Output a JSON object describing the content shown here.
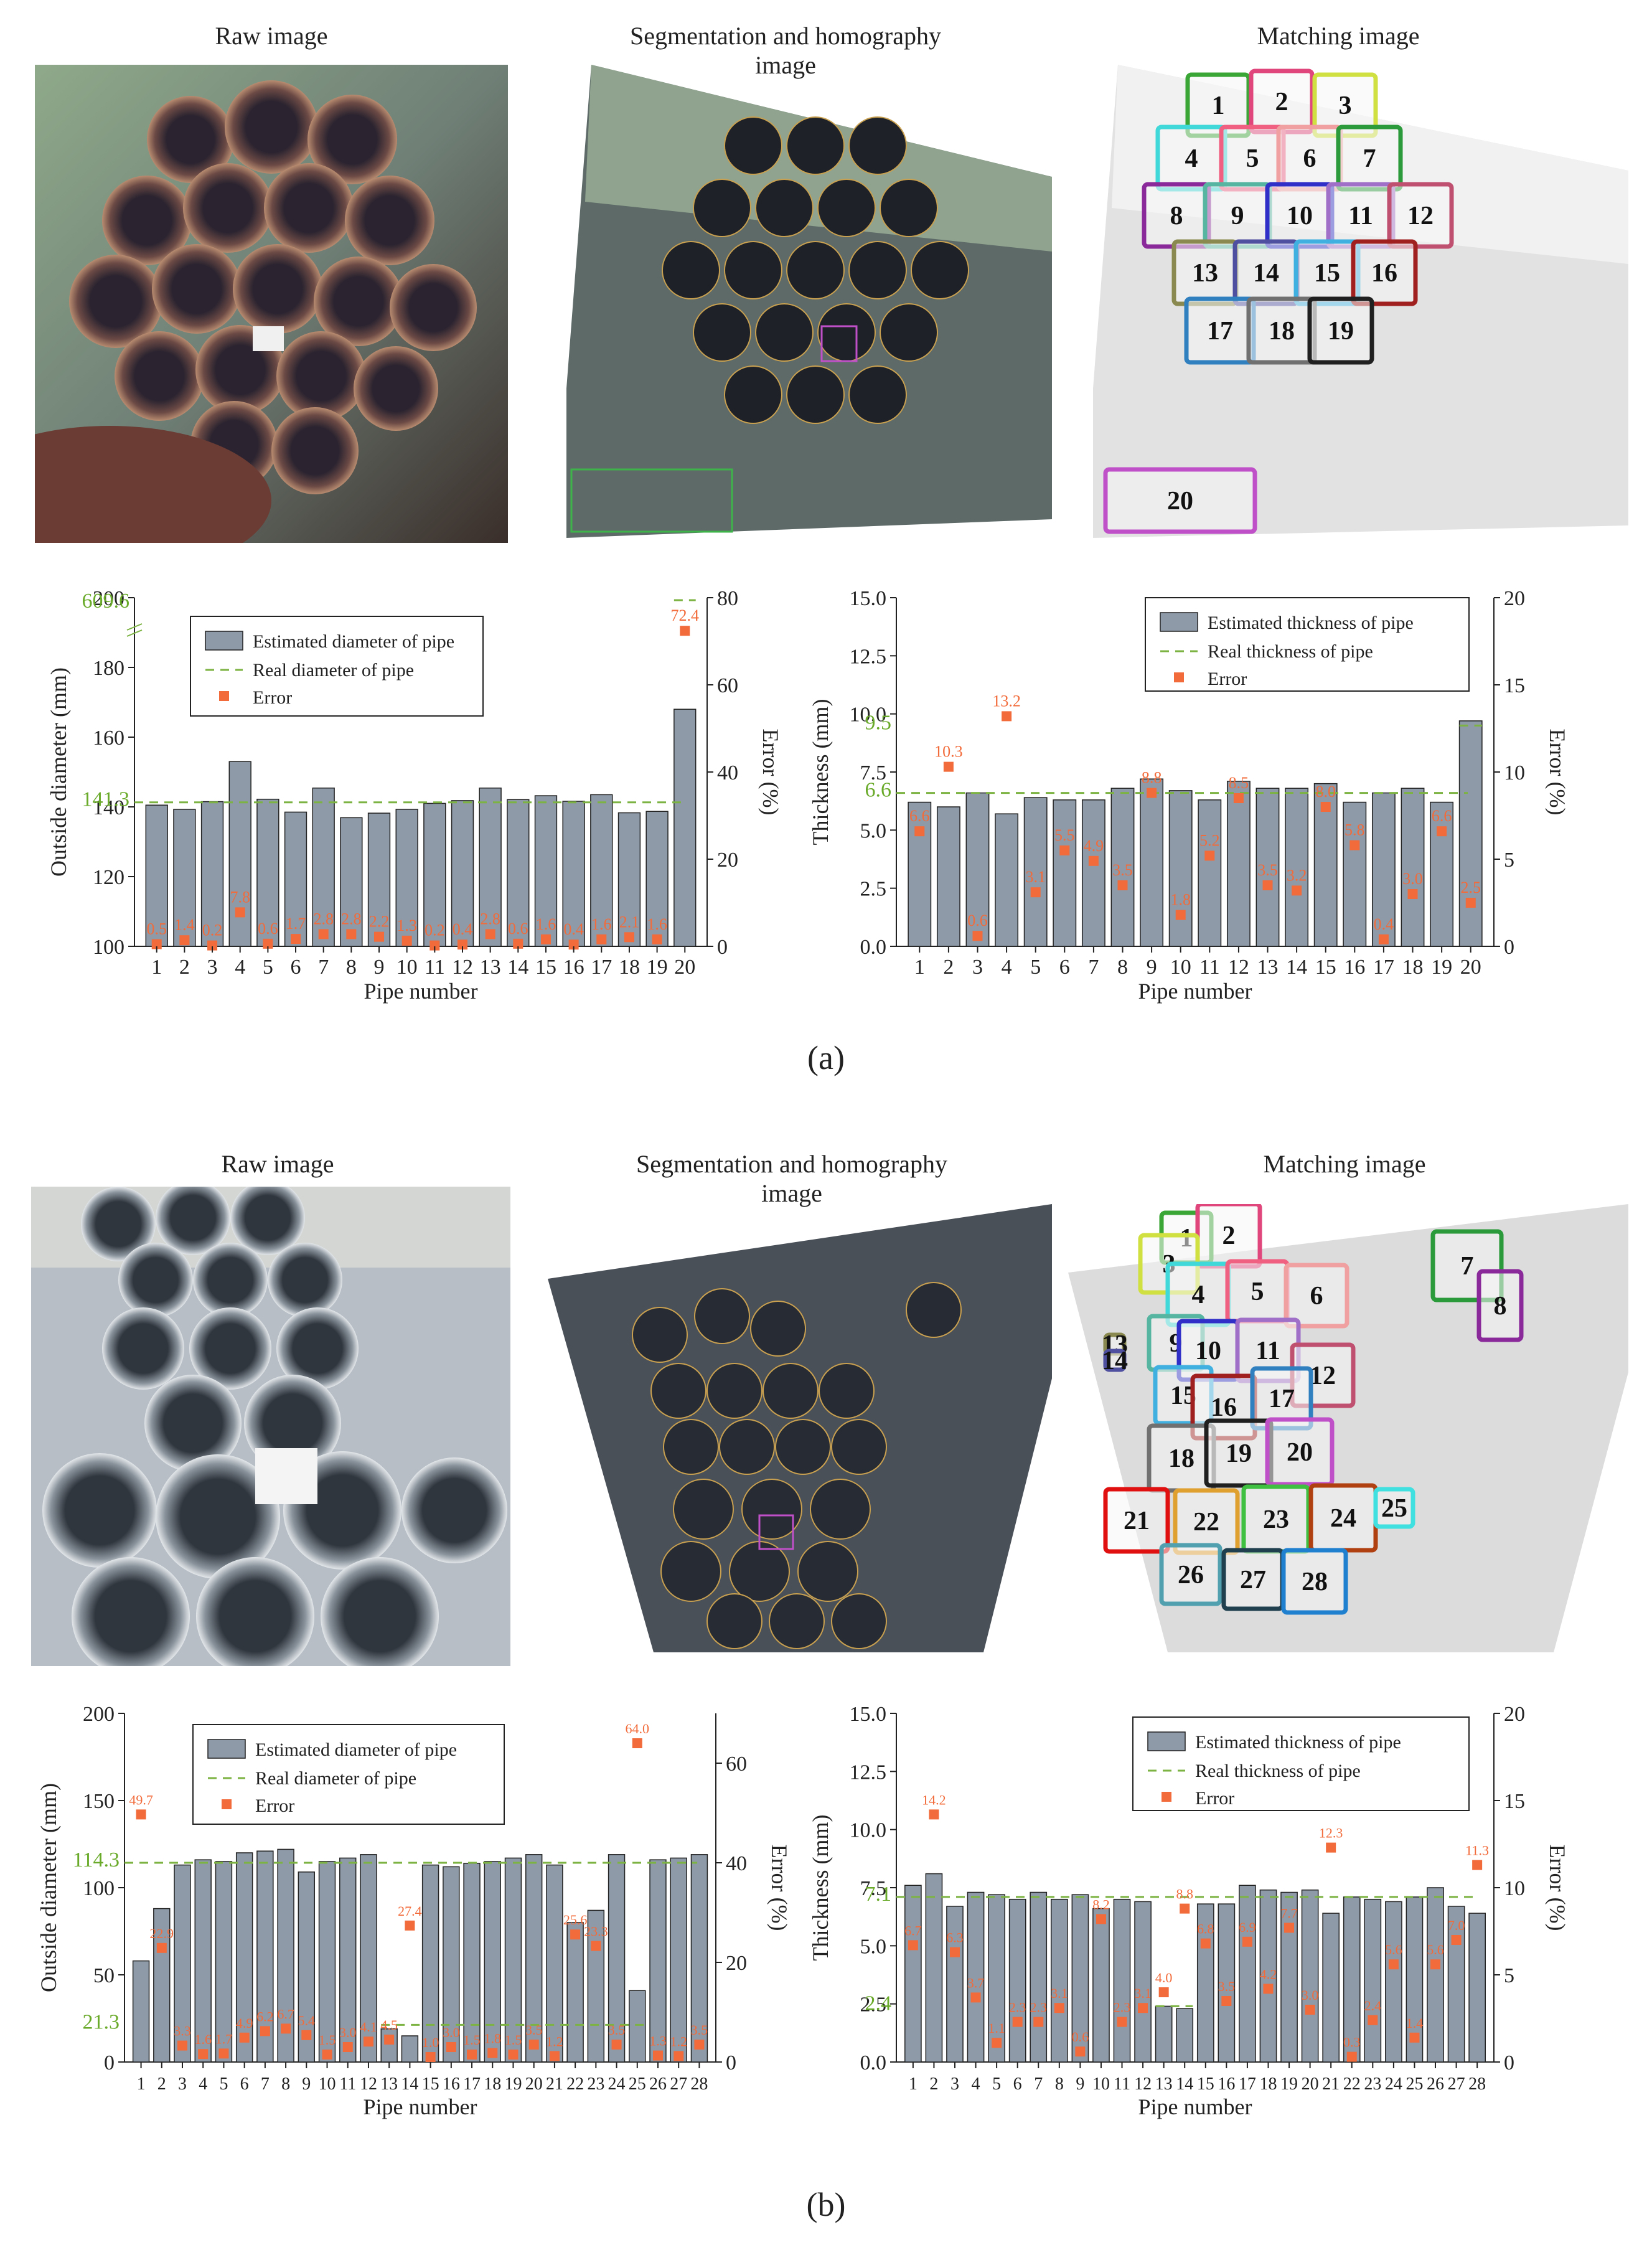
{
  "figure_labels": {
    "a": "(a)",
    "b": "(b)"
  },
  "row_a": {
    "captions": {
      "raw": "Raw image",
      "seg": "Segmentation and homography image",
      "match": "Matching image"
    },
    "match_labels": [
      "1",
      "2",
      "3",
      "4",
      "5",
      "6",
      "7",
      "8",
      "9",
      "10",
      "11",
      "12",
      "13",
      "14",
      "15",
      "16",
      "17",
      "18",
      "19",
      "20"
    ]
  },
  "row_b": {
    "captions": {
      "raw": "Raw image",
      "seg": "Segmentation and homography image",
      "match": "Matching image"
    },
    "match_labels": [
      "1",
      "2",
      "3",
      "4",
      "5",
      "6",
      "7",
      "8",
      "9",
      "10",
      "11",
      "12",
      "13",
      "14",
      "15",
      "16",
      "17",
      "18",
      "19",
      "20",
      "21",
      "22",
      "23",
      "24",
      "25",
      "26",
      "27",
      "28"
    ]
  },
  "colors": {
    "bar": "#8e9aa8",
    "bar_edge": "#222222",
    "real": "#7cb342",
    "error": "#f26b3a",
    "real_label": "#6aaa2a"
  },
  "chart_data": [
    {
      "id": "a-diameter",
      "type": "bar",
      "categories": [
        "1",
        "2",
        "3",
        "4",
        "5",
        "6",
        "7",
        "8",
        "9",
        "10",
        "11",
        "12",
        "13",
        "14",
        "15",
        "16",
        "17",
        "18",
        "19",
        "20"
      ],
      "series": [
        {
          "name": "Estimated diameter of pipe",
          "kind": "bar",
          "axis": "left",
          "values": [
            140.5,
            139.3,
            141.5,
            153,
            142.2,
            138.5,
            145.4,
            136.9,
            138.2,
            139.3,
            141,
            141.8,
            145.4,
            142.1,
            143.2,
            141.6,
            143.5,
            138.3,
            138.7,
            168
          ]
        },
        {
          "name": "Real diameter of pipe",
          "kind": "dashed-line",
          "axis": "left",
          "value": 141.3,
          "break_value": 609.6
        },
        {
          "name": "Error",
          "kind": "scatter",
          "axis": "right",
          "values": [
            0.5,
            1.4,
            0.2,
            7.8,
            0.6,
            1.7,
            2.8,
            2.8,
            2.2,
            1.3,
            0.2,
            0.4,
            2.8,
            0.6,
            1.6,
            0.4,
            1.6,
            2.1,
            1.6,
            72.4
          ],
          "labels": [
            "0.5",
            "1.4",
            "0.2",
            "7.8",
            "0.6",
            "1.7",
            "2.8",
            "2.8",
            "2.2",
            "1.3",
            "0.2",
            "0.4",
            "2.8",
            "0.6",
            "1.6",
            "0.4",
            "1.6",
            "2.1",
            "1.6",
            "72.4"
          ]
        }
      ],
      "xlabel": "Pipe number",
      "ylabel": "Outside diameter (mm)",
      "y2label": "Error (%)",
      "ylim": [
        100,
        200
      ],
      "y2lim": [
        0,
        80
      ],
      "yticks": [
        "100",
        "120",
        "140",
        "160",
        "180",
        "200"
      ],
      "y2ticks": [
        "0",
        "20",
        "40",
        "60",
        "80"
      ],
      "real_labels": [
        "141.3",
        "609.6"
      ],
      "legend_pos": "top-center"
    },
    {
      "id": "a-thickness",
      "type": "bar",
      "categories": [
        "1",
        "2",
        "3",
        "4",
        "5",
        "6",
        "7",
        "8",
        "9",
        "10",
        "11",
        "12",
        "13",
        "14",
        "15",
        "16",
        "17",
        "18",
        "19",
        "20"
      ],
      "series": [
        {
          "name": "Estimated thickness of pipe",
          "kind": "bar",
          "axis": "left",
          "values": [
            6.2,
            6.0,
            6.6,
            5.7,
            6.4,
            6.3,
            6.3,
            6.8,
            7.2,
            6.7,
            6.3,
            7.1,
            6.8,
            6.8,
            7.0,
            6.2,
            6.6,
            6.8,
            6.2,
            9.7
          ]
        },
        {
          "name": "Real thickness of pipe",
          "kind": "dashed-line",
          "axis": "left",
          "value": 6.6,
          "value2": 9.5
        },
        {
          "name": "Error",
          "kind": "scatter",
          "axis": "right",
          "values": [
            6.6,
            10.3,
            0.6,
            13.2,
            3.1,
            5.5,
            4.9,
            3.5,
            8.8,
            1.8,
            5.2,
            8.5,
            3.5,
            3.2,
            8.0,
            5.8,
            0.4,
            3.0,
            6.6,
            2.5
          ],
          "labels": [
            "6.6",
            "10.3",
            "0.6",
            "13.2",
            "3.1",
            "5.5",
            "4.9",
            "3.5",
            "8.8",
            "1.8",
            "5.2",
            "8.5",
            "3.5",
            "3.2",
            "8.0",
            "5.8",
            "0.4",
            "3.0",
            "6.6",
            "2.5"
          ]
        }
      ],
      "xlabel": "Pipe number",
      "ylabel": "Thickness (mm)",
      "y2label": "Error (%)",
      "ylim": [
        0,
        15
      ],
      "y2lim": [
        0,
        20
      ],
      "yticks": [
        "0.0",
        "2.5",
        "5.0",
        "7.5",
        "10.0",
        "12.5",
        "15.0"
      ],
      "y2ticks": [
        "0",
        "5",
        "10",
        "15",
        "20"
      ],
      "real_labels": [
        "6.6",
        "9.5"
      ],
      "legend_pos": "top-right"
    },
    {
      "id": "b-diameter",
      "type": "bar",
      "categories": [
        "1",
        "2",
        "3",
        "4",
        "5",
        "6",
        "7",
        "8",
        "9",
        "10",
        "11",
        "12",
        "13",
        "14",
        "15",
        "16",
        "17",
        "18",
        "19",
        "20",
        "21",
        "22",
        "23",
        "24",
        "25",
        "26",
        "27",
        "28"
      ],
      "series": [
        {
          "name": "Estimated diameter of pipe",
          "kind": "bar",
          "axis": "left",
          "values": [
            58,
            88,
            113,
            116,
            115,
            120,
            121,
            122,
            109,
            115,
            117,
            119,
            19,
            15,
            113,
            112,
            114,
            115,
            117,
            119,
            113,
            80,
            87,
            119,
            41,
            116,
            117,
            119
          ]
        },
        {
          "name": "Real diameter of pipe",
          "kind": "dashed-line",
          "axis": "left",
          "value": 114.3,
          "value2": 21.3
        },
        {
          "name": "Error",
          "kind": "scatter",
          "axis": "right",
          "values": [
            49.7,
            22.9,
            3.3,
            1.6,
            1.7,
            4.9,
            6.2,
            6.7,
            5.4,
            1.5,
            3.0,
            4.1,
            4.5,
            27.4,
            1.0,
            3.0,
            1.5,
            1.8,
            1.5,
            3.5,
            1.2,
            25.6,
            23.3,
            3.5,
            64.0,
            1.3,
            1.2,
            3.5
          ],
          "labels": [
            "49.7",
            "22.9",
            "3.3",
            "1.6",
            "1.7",
            "4.9",
            "6.2",
            "6.7",
            "5.4",
            "1.5",
            "3.0",
            "4.1",
            "4.5",
            "27.4",
            "1.0",
            "3.0",
            "1.5",
            "1.8",
            "1.5",
            "3.5",
            "1.2",
            "25.6",
            "23.3",
            "3.5",
            "64.0",
            "1.3",
            "1.2",
            "3.5"
          ]
        }
      ],
      "xlabel": "Pipe number",
      "ylabel": "Outside diameter (mm)",
      "y2label": "Error (%)",
      "ylim": [
        0,
        200
      ],
      "y2lim": [
        0,
        70
      ],
      "yticks": [
        "0",
        "50",
        "100",
        "150",
        "200"
      ],
      "y2ticks": [
        "0",
        "20",
        "40",
        "60"
      ],
      "real_labels": [
        "114.3",
        "21.3"
      ],
      "legend_pos": "top-center"
    },
    {
      "id": "b-thickness",
      "type": "bar",
      "categories": [
        "1",
        "2",
        "3",
        "4",
        "5",
        "6",
        "7",
        "8",
        "9",
        "10",
        "11",
        "12",
        "13",
        "14",
        "15",
        "16",
        "17",
        "18",
        "19",
        "20",
        "21",
        "22",
        "23",
        "24",
        "25",
        "26",
        "27",
        "28"
      ],
      "series": [
        {
          "name": "Estimated thickness of pipe",
          "kind": "bar",
          "axis": "left",
          "values": [
            7.6,
            8.1,
            6.7,
            7.3,
            7.2,
            7.0,
            7.3,
            7.0,
            7.2,
            6.6,
            7.0,
            6.9,
            2.4,
            2.3,
            6.8,
            6.8,
            7.6,
            7.4,
            7.3,
            7.4,
            6.4,
            7.1,
            7.0,
            6.9,
            7.1,
            7.5,
            6.7,
            6.4
          ]
        },
        {
          "name": "Real thickness of pipe",
          "kind": "dashed-line",
          "axis": "left",
          "value": 7.1,
          "value2": 2.4
        },
        {
          "name": "Error",
          "kind": "scatter",
          "axis": "right",
          "values": [
            6.7,
            14.2,
            6.3,
            3.7,
            1.1,
            2.3,
            2.3,
            3.1,
            0.6,
            8.2,
            2.3,
            3.1,
            4.0,
            8.8,
            6.8,
            3.5,
            6.9,
            4.2,
            7.7,
            3.0,
            12.3,
            0.3,
            2.4,
            5.6,
            1.4,
            5.6,
            7.0,
            11.3
          ],
          "labels": [
            "6.7",
            "14.2",
            "6.3",
            "3.7",
            "1.1",
            "2.3",
            "2.3",
            "3.1",
            "0.6",
            "8.2",
            "2.3",
            "3.1",
            "4.0",
            "8.8",
            "6.8",
            "3.5",
            "6.9",
            "4.2",
            "7.7",
            "3.0",
            "12.3",
            "0.3",
            "2.4",
            "5.6",
            "1.4",
            "5.6",
            "7.0",
            "11.3"
          ]
        }
      ],
      "xlabel": "Pipe number",
      "ylabel": "Thickness (mm)",
      "y2label": "Error (%)",
      "ylim": [
        0,
        15
      ],
      "y2lim": [
        0,
        20
      ],
      "yticks": [
        "0.0",
        "2.5",
        "5.0",
        "7.5",
        "10.0",
        "12.5",
        "15.0"
      ],
      "y2ticks": [
        "0",
        "5",
        "10",
        "15",
        "20"
      ],
      "real_labels": [
        "7.1",
        "2.4"
      ],
      "legend_pos": "top-right"
    }
  ]
}
